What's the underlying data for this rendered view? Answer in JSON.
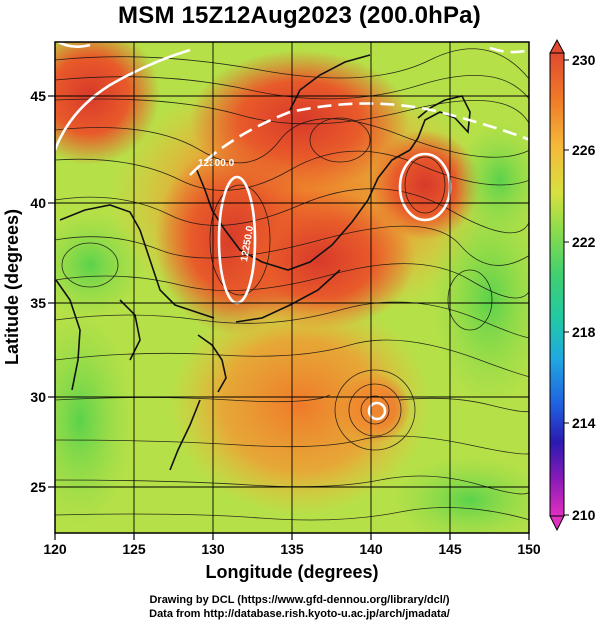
{
  "title": "MSM 15Z12Aug2023 (200.0hPa)",
  "axes": {
    "xlabel": "Longitude (degrees)",
    "ylabel": "Latitude  (degrees)",
    "x_ticks": [
      "120",
      "125",
      "130",
      "135",
      "140",
      "145",
      "150"
    ],
    "y_ticks": [
      "45",
      "40",
      "35",
      "30",
      "25"
    ]
  },
  "colorbar": {
    "ticks": [
      "230",
      "226",
      "222",
      "218",
      "214",
      "210"
    ],
    "colors": [
      "#e04a30",
      "#f07a28",
      "#f6b83a",
      "#d8e040",
      "#8edc4a",
      "#3fd070",
      "#20c8a8",
      "#20a8e0",
      "#2060e0",
      "#2a1ab0",
      "#8a1ab8",
      "#e030c0"
    ]
  },
  "contour_labels": [
    "12300.0",
    "12250.0"
  ],
  "credits": {
    "line1": "Drawing by DCL (https://www.gfd-dennou.org/library/dcl/)",
    "line2": "Data from http://database.rish.kyoto-u.ac.jp/arch/jmadata/"
  }
}
